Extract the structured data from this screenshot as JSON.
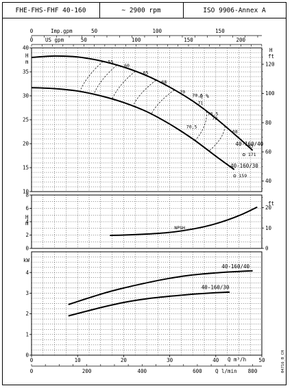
{
  "header": {
    "model": "FHE-FHS-FHF 40-160",
    "speed": "~ 2900 rpm",
    "standard": "ISO 9906-Annex A"
  },
  "side_code": "04716_B_CH",
  "chart_data": [
    {
      "type": "line",
      "panel": "head",
      "x_axis": {
        "label": "Q m³/h",
        "range": [
          0,
          50
        ],
        "ticks": [
          "0",
          "10",
          "20",
          "30",
          "40",
          "50"
        ]
      },
      "x_axis_secondary": {
        "label": "Q l/min",
        "range": [
          0,
          833.3
        ],
        "ticks": [
          "0",
          "200",
          "400",
          "600",
          "800"
        ]
      },
      "x_axis_top_imp": {
        "label": "Imp.gpm",
        "range": [
          0,
          183.3
        ],
        "ticks": [
          "0",
          "50",
          "100",
          "150"
        ]
      },
      "x_axis_top_us": {
        "label": "US gpm",
        "range": [
          0,
          220.1
        ],
        "ticks": [
          "0",
          "50",
          "100",
          "150",
          "200"
        ]
      },
      "y_axis_left": {
        "label": "H m",
        "range": [
          10,
          40
        ],
        "ticks": [
          "10",
          "15",
          "20",
          "25",
          "30",
          "35",
          "40"
        ]
      },
      "y_axis_right": {
        "label": "H ft",
        "range": [
          32.8,
          131.2
        ],
        "ticks": [
          "40",
          "60",
          "80",
          "100",
          "120"
        ]
      },
      "series": [
        {
          "name": "40-160/40",
          "x": [
            0,
            5,
            10,
            15,
            20,
            25,
            30,
            35,
            40,
            45,
            48
          ],
          "y": [
            38,
            38.3,
            38.1,
            37.3,
            36.0,
            34.2,
            31.8,
            28.9,
            25.3,
            21.2,
            18.6
          ]
        },
        {
          "name": "40-160/30",
          "x": [
            0,
            5,
            10,
            15,
            20,
            25,
            30,
            35,
            40,
            44
          ],
          "y": [
            31.7,
            31.5,
            31.0,
            30.0,
            28.6,
            26.7,
            24.1,
            21.0,
            17.4,
            14.6
          ]
        }
      ],
      "efficiency_labels": [
        "55",
        "60",
        "65",
        "68",
        "70",
        "70,5",
        "71",
        "70,5",
        "70",
        "68",
        "65",
        "70,5"
      ],
      "efficiency_symbol": "η %",
      "impeller_labels": [
        {
          "text": "171",
          "series": "40-160/40"
        },
        {
          "text": "159",
          "series": "40-160/30"
        }
      ]
    },
    {
      "type": "line",
      "panel": "npsh",
      "y_axis_left": {
        "label": "H m",
        "range": [
          0,
          8
        ],
        "ticks": [
          "0",
          "2",
          "4",
          "6",
          "8"
        ]
      },
      "y_axis_right": {
        "label": "ft",
        "range": [
          0,
          26.2
        ],
        "ticks": [
          "0",
          "10",
          "20"
        ]
      },
      "series": [
        {
          "name": "NPSH",
          "x": [
            17,
            20,
            25,
            30,
            35,
            40,
            45,
            49
          ],
          "y": [
            1.95,
            2.0,
            2.15,
            2.4,
            2.9,
            3.7,
            4.9,
            6.2
          ]
        }
      ]
    },
    {
      "type": "line",
      "panel": "power",
      "y_axis_left": {
        "label": "kW",
        "range": [
          0,
          5
        ],
        "ticks": [
          "0",
          "1",
          "2",
          "3",
          "4"
        ]
      },
      "series": [
        {
          "name": "40-160/40",
          "x": [
            8,
            15,
            20,
            25,
            30,
            35,
            40,
            45,
            48
          ],
          "y": [
            2.45,
            2.95,
            3.25,
            3.5,
            3.72,
            3.88,
            3.98,
            4.05,
            4.08
          ]
        },
        {
          "name": "40-160/30",
          "x": [
            8,
            15,
            20,
            25,
            30,
            35,
            40,
            43
          ],
          "y": [
            1.9,
            2.3,
            2.55,
            2.73,
            2.85,
            2.95,
            3.02,
            3.05
          ]
        }
      ]
    }
  ]
}
